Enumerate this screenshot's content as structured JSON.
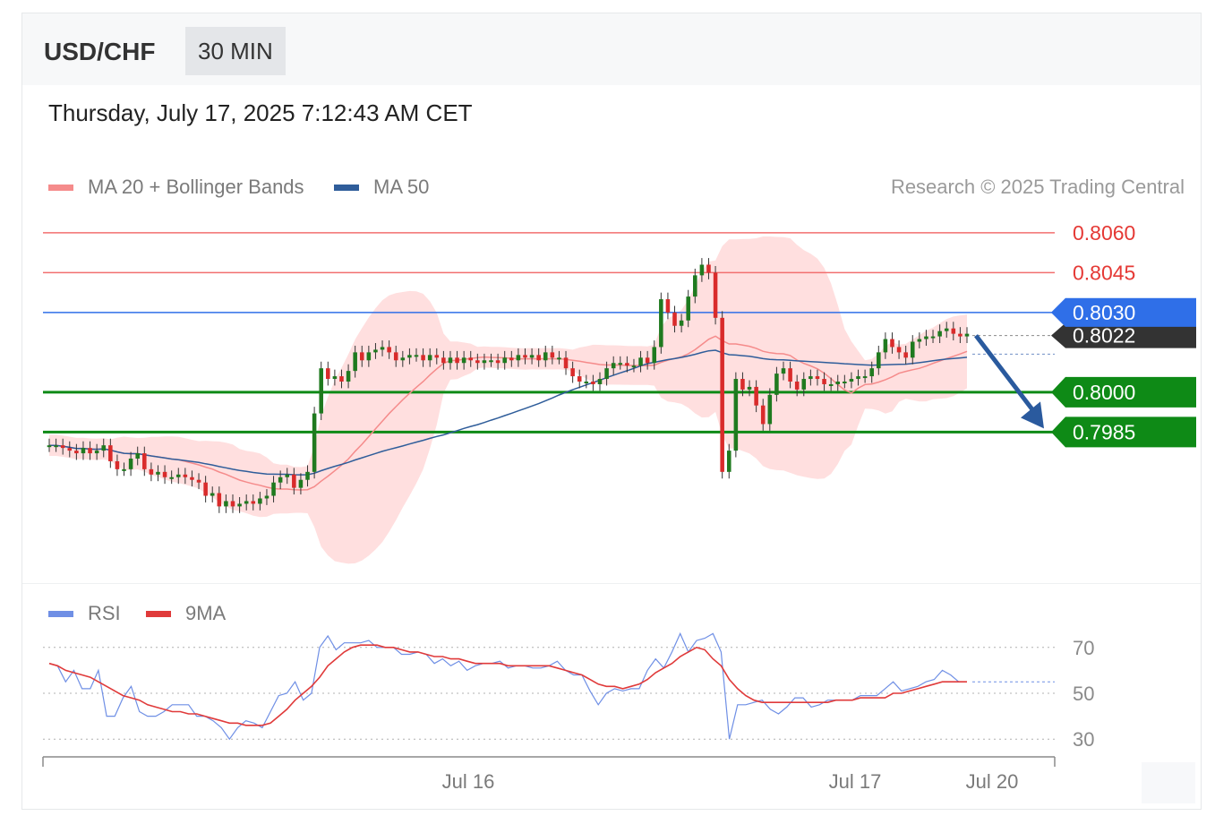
{
  "header": {
    "symbol": "USD/CHF",
    "interval": "30 MIN",
    "datetime": "Thursday, July 17, 2025 7:12:43 AM CET"
  },
  "legend": {
    "ma20_label": "MA 20 + Bollinger Bands",
    "ma50_label": "MA 50",
    "credit": "Research © 2025 Trading Central",
    "rsi_label": "RSI",
    "rsi_ma_label": "9MA"
  },
  "colors": {
    "resistance": "#f26f6f",
    "pivot": "#2f6fe8",
    "support": "#0e8a16",
    "ma20": "#f58b8b",
    "ma50": "#2f5d9a",
    "bollinger": "#ffd9d9",
    "candle_up": "#1f7a1f",
    "candle_down": "#d92b2b",
    "rsi": "#6f8fe5",
    "rsi_ma": "#e03a3a",
    "arrow": "#2a5a9e",
    "price_tag": "#333333"
  },
  "chart_data": [
    {
      "type": "candlestick",
      "title": "",
      "ylim": [
        0.7946,
        0.8062
      ],
      "x_tick_labels": [
        "Jul 16",
        "Jul 17",
        "Jul 20"
      ],
      "levels": [
        {
          "name": "resistance 2",
          "label": "0.8060",
          "value": 0.806,
          "kind": "resistance"
        },
        {
          "name": "resistance 1",
          "label": "0.8045",
          "value": 0.8045,
          "kind": "resistance"
        },
        {
          "name": "pivot",
          "label": "0.8030",
          "value": 0.803,
          "kind": "pivot"
        },
        {
          "name": "support 1",
          "label": "0.8000",
          "value": 0.8,
          "kind": "support"
        },
        {
          "name": "support 2",
          "label": "0.7985",
          "value": 0.7985,
          "kind": "support"
        }
      ],
      "last_price": {
        "label": "0.8022",
        "value": 0.8022
      },
      "forecast_arrow": {
        "from": 0.8022,
        "to": 0.7985,
        "direction": "down"
      },
      "close": [
        0.798,
        0.798,
        0.7979,
        0.7978,
        0.7977,
        0.7979,
        0.7977,
        0.7978,
        0.798,
        0.7974,
        0.7971,
        0.7971,
        0.7975,
        0.7977,
        0.7971,
        0.7969,
        0.797,
        0.7968,
        0.7968,
        0.7969,
        0.7968,
        0.7967,
        0.7966,
        0.7961,
        0.7962,
        0.7957,
        0.7959,
        0.7957,
        0.7958,
        0.7959,
        0.7958,
        0.796,
        0.7961,
        0.7966,
        0.7968,
        0.7969,
        0.7964,
        0.7967,
        0.797,
        0.7992,
        0.8009,
        0.8005,
        0.8006,
        0.8004,
        0.8008,
        0.8015,
        0.8012,
        0.8015,
        0.8016,
        0.8017,
        0.8015,
        0.8012,
        0.8013,
        0.8014,
        0.8014,
        0.8012,
        0.8014,
        0.8013,
        0.8011,
        0.8013,
        0.8011,
        0.8013,
        0.8012,
        0.8011,
        0.8012,
        0.8012,
        0.8011,
        0.8013,
        0.8012,
        0.8014,
        0.8013,
        0.8014,
        0.8012,
        0.8015,
        0.8013,
        0.8013,
        0.8009,
        0.8006,
        0.8004,
        0.8004,
        0.8003,
        0.8005,
        0.8009,
        0.8011,
        0.8011,
        0.801,
        0.801,
        0.8013,
        0.8011,
        0.8017,
        0.8035,
        0.803,
        0.8025,
        0.8027,
        0.8036,
        0.8044,
        0.8048,
        0.8045,
        0.8028,
        0.797,
        0.7978,
        0.8005,
        0.8001,
        0.8002,
        0.7995,
        0.7988,
        0.7999,
        0.8007,
        0.8009,
        0.8004,
        0.8001,
        0.8005,
        0.8006,
        0.8005,
        0.8003,
        0.8003,
        0.8004,
        0.8004,
        0.8005,
        0.8006,
        0.8006,
        0.8009,
        0.8015,
        0.802,
        0.8017,
        0.8015,
        0.8013,
        0.8019,
        0.802,
        0.8021,
        0.8021,
        0.8023,
        0.8024,
        0.8022,
        0.8021,
        0.8022
      ],
      "ma20_last": 0.8014,
      "ma50_last": 0.8015
    },
    {
      "type": "line",
      "title": "",
      "ylim": [
        25,
        75
      ],
      "y_tick_labels": [
        "70",
        "50",
        "30"
      ],
      "series": [
        {
          "name": "RSI",
          "values": [
            63,
            62,
            55,
            60,
            52,
            52,
            60,
            40,
            40,
            48,
            53,
            42,
            40,
            40,
            42,
            45,
            45,
            45,
            40,
            40,
            38,
            35,
            30,
            35,
            38,
            37,
            35,
            42,
            49,
            50,
            55,
            47,
            50,
            70,
            75,
            69,
            72,
            72,
            72,
            73,
            70,
            70,
            70,
            67,
            67,
            68,
            67,
            63,
            65,
            62,
            64,
            60,
            62,
            63,
            63,
            64,
            61,
            62,
            62,
            61,
            61,
            62,
            64,
            60,
            58,
            58,
            51,
            45,
            50,
            52,
            51,
            52,
            52,
            60,
            65,
            61,
            68,
            76,
            68,
            73,
            74,
            76,
            68,
            30,
            45,
            45,
            46,
            47,
            43,
            41,
            44,
            48,
            48,
            44,
            45,
            47,
            47,
            47,
            47,
            49,
            49,
            49,
            52,
            55,
            51,
            52,
            53,
            55,
            56,
            60,
            58,
            55,
            55
          ]
        },
        {
          "name": "9MA",
          "values": [
            63,
            62,
            60,
            59,
            58,
            57,
            55,
            53,
            51,
            49,
            48,
            47,
            45,
            44,
            43,
            42,
            42,
            41,
            41,
            40,
            39,
            38,
            37,
            37,
            36,
            36,
            36,
            37,
            40,
            43,
            47,
            50,
            53,
            57,
            62,
            65,
            68,
            70,
            71,
            71,
            71,
            70,
            70,
            69,
            68,
            68,
            67,
            66,
            66,
            65,
            65,
            64,
            63,
            63,
            63,
            63,
            62,
            62,
            62,
            62,
            62,
            62,
            61,
            60,
            59,
            58,
            56,
            54,
            53,
            53,
            52,
            53,
            54,
            56,
            59,
            61,
            63,
            66,
            68,
            70,
            69,
            65,
            62,
            56,
            52,
            49,
            47,
            46,
            46,
            46,
            46,
            46,
            46,
            46,
            46,
            46,
            47,
            47,
            47,
            48,
            48,
            48,
            48,
            50,
            50,
            51,
            52,
            53,
            54,
            55,
            55,
            55,
            55
          ]
        }
      ],
      "last_value": 55
    }
  ]
}
